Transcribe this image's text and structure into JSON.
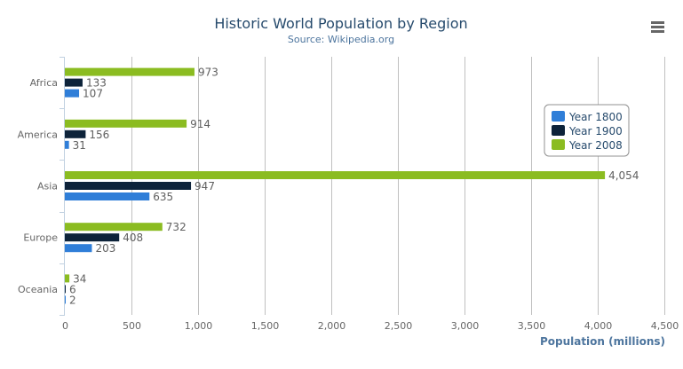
{
  "chart_data": {
    "type": "bar",
    "orientation": "horizontal",
    "title": "Historic World Population by Region",
    "subtitle": "Source: Wikipedia.org",
    "xlabel": "",
    "ylabel": "Population (millions)",
    "categories": [
      "Africa",
      "America",
      "Asia",
      "Europe",
      "Oceania"
    ],
    "series": [
      {
        "name": "Year 1800",
        "color": "#2f7ed8",
        "values": [
          107,
          31,
          635,
          203,
          2
        ]
      },
      {
        "name": "Year 1900",
        "color": "#0d233a",
        "values": [
          133,
          156,
          947,
          408,
          6
        ]
      },
      {
        "name": "Year 2008",
        "color": "#8bbc21",
        "values": [
          973,
          914,
          4054,
          732,
          34
        ]
      }
    ],
    "value_ticks": [
      "0",
      "500",
      "1,000",
      "1,500",
      "2,000",
      "2,500",
      "3,000",
      "3,500",
      "4,000",
      "4,500"
    ],
    "ylim": [
      0,
      4500
    ],
    "grid": true,
    "data_labels": true,
    "legend": {
      "placement": "right-top",
      "items": [
        "Year 1800",
        "Year 1900",
        "Year 2008"
      ]
    }
  },
  "menu_icon": "hamburger-menu-icon"
}
